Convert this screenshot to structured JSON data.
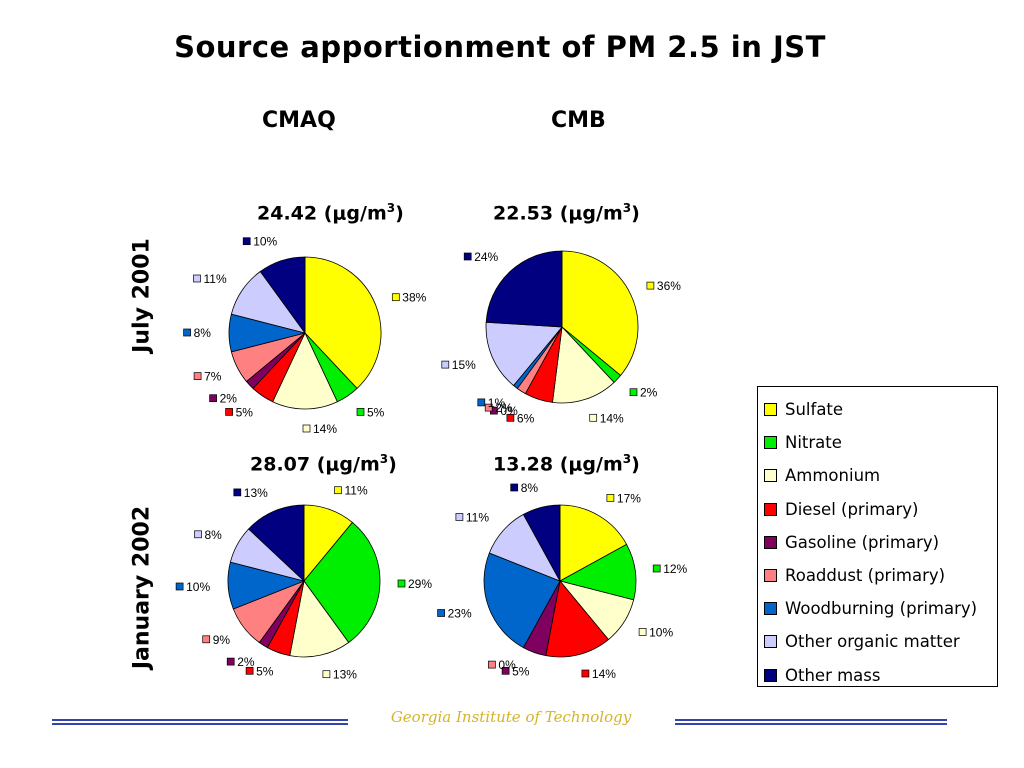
{
  "title": "Source apportionment of PM 2.5 in JST",
  "columns": [
    "CMAQ",
    "CMB"
  ],
  "rows": [
    "July 2001",
    "January 2002"
  ],
  "legend": [
    {
      "label": "Sulfate",
      "color": "#ffff00"
    },
    {
      "label": "Nitrate",
      "color": "#00ee00"
    },
    {
      "label": "Ammonium",
      "color": "#ffffcc"
    },
    {
      "label": "Diesel (primary)",
      "color": "#ff0000"
    },
    {
      "label": "Gasoline (primary)",
      "color": "#800060"
    },
    {
      "label": "Roaddust (primary)",
      "color": "#ff8080"
    },
    {
      "label": "Woodburning (primary)",
      "color": "#0066cc"
    },
    {
      "label": "Other organic matter",
      "color": "#ccccff"
    },
    {
      "label": "Other mass",
      "color": "#000080"
    }
  ],
  "footer": "Georgia Institute of Technology",
  "chart_data": [
    {
      "type": "pie",
      "model": "CMAQ",
      "period": "July 2001",
      "concentration": "24.42",
      "unit_prefix": "μg/m",
      "unit_sup": "3",
      "values": [
        38,
        5,
        14,
        5,
        2,
        7,
        8,
        11,
        10
      ],
      "labels": [
        "38%",
        "5%",
        "14%",
        "5%",
        "2%",
        "7%",
        "8%",
        "11%",
        "10%"
      ]
    },
    {
      "type": "pie",
      "model": "CMB",
      "period": "July 2001",
      "concentration": "22.53",
      "unit_prefix": "μg/m",
      "unit_sup": "3",
      "values": [
        36,
        2,
        14,
        6,
        0,
        2,
        1,
        15,
        24
      ],
      "labels": [
        "36%",
        "2%",
        "14%",
        "6%",
        "0%",
        "2%",
        "1%",
        "15%",
        "24%"
      ]
    },
    {
      "type": "pie",
      "model": "CMAQ",
      "period": "January 2002",
      "concentration": "28.07",
      "unit_prefix": "μg/m",
      "unit_sup": "3",
      "values": [
        11,
        29,
        13,
        5,
        2,
        9,
        10,
        8,
        13
      ],
      "labels": [
        "11%",
        "29%",
        "13%",
        "5%",
        "2%",
        "9%",
        "10%",
        "8%",
        "13%"
      ]
    },
    {
      "type": "pie",
      "model": "CMB",
      "period": "January 2002",
      "concentration": "13.28",
      "unit_prefix": "μg/m",
      "unit_sup": "3",
      "values": [
        17,
        12,
        10,
        14,
        5,
        0,
        23,
        11,
        8
      ],
      "labels": [
        "17%",
        "12%",
        "10%",
        "14%",
        "5%",
        "0%",
        "23%",
        "11%",
        "8%"
      ]
    }
  ]
}
